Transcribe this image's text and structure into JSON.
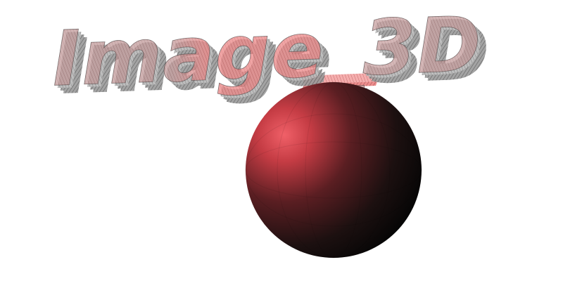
{
  "scene": {
    "title_text": "Image_3D",
    "render_style": "wireframe-extruded-3d-text",
    "colors": {
      "background": "#ffffff",
      "text_gray": "#8a8a8a",
      "text_gray_dark": "#4a4a4a",
      "text_red": "#e05a5a",
      "text_red_dark": "#7a2020",
      "sphere_highlight": "#e8525a",
      "sphere_mid": "#5a1e22",
      "sphere_shadow": "#0a0a0a"
    },
    "objects": [
      "extruded-title",
      "shaded-sphere",
      "red-underscore-bar"
    ]
  }
}
